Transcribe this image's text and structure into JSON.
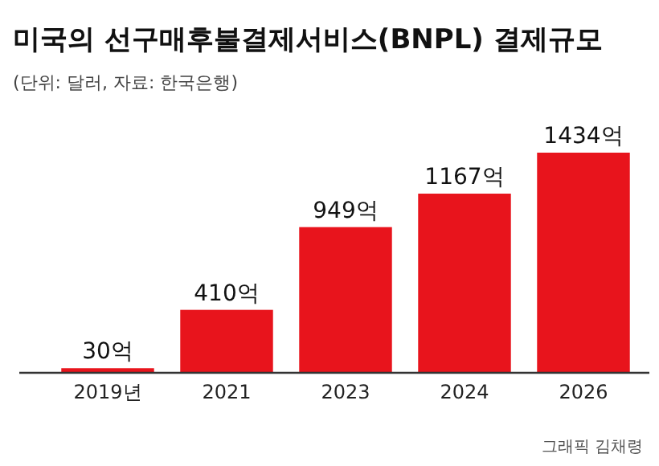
{
  "chart_data": {
    "type": "bar",
    "title": "미국의 선구매후불결제서비스(BNPL) 결제규모",
    "subtitle": "(단위: 달러, 자료: 한국은행)",
    "categories": [
      "2019년",
      "2021",
      "2023",
      "2024",
      "2026"
    ],
    "values": [
      30,
      410,
      949,
      1167,
      1434
    ],
    "value_labels": [
      "30억",
      "410억",
      "949억",
      "1167억",
      "1434억"
    ],
    "color": "#e8141c",
    "annotations": [
      "그래픽 김채령"
    ]
  }
}
